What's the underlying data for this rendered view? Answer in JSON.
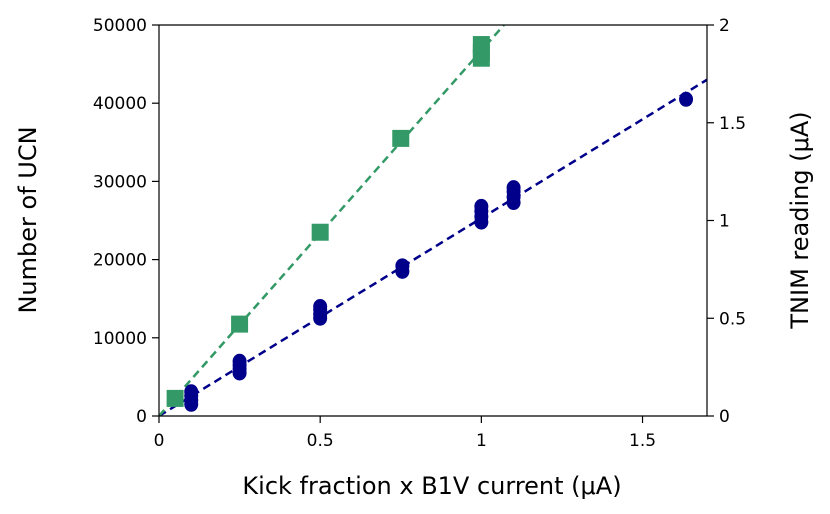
{
  "chart_data": {
    "type": "scatter",
    "title": "",
    "xlabel": "Kick fraction x B1V current (μA)",
    "ylabel_left": "Number of UCN",
    "ylabel_right": "TNIM reading (μA)",
    "xlim": [
      0,
      1.7
    ],
    "ylim_left": [
      0,
      50000
    ],
    "ylim_right": [
      0,
      2
    ],
    "x_ticks": [
      0,
      0.5,
      1,
      1.5
    ],
    "x_tick_labels": [
      "0",
      "0.5",
      "1",
      "1.5"
    ],
    "y_left_ticks": [
      0,
      10000,
      20000,
      30000,
      40000,
      50000
    ],
    "y_left_tick_labels": [
      "0",
      "10000",
      "20000",
      "30000",
      "40000",
      "50000"
    ],
    "y_right_ticks": [
      0,
      0.5,
      1,
      1.5,
      2
    ],
    "y_right_tick_labels": [
      "0",
      "0.5",
      "1",
      "1.5",
      "2"
    ],
    "grid": false,
    "series": [
      {
        "axis": "left",
        "marker": "circle",
        "color": "#00008b",
        "points": [
          [
            0.1,
            1500
          ],
          [
            0.1,
            2000
          ],
          [
            0.1,
            2600
          ],
          [
            0.1,
            3100
          ],
          [
            0.25,
            5500
          ],
          [
            0.25,
            6000
          ],
          [
            0.25,
            6500
          ],
          [
            0.25,
            7000
          ],
          [
            0.5,
            12500
          ],
          [
            0.5,
            13000
          ],
          [
            0.5,
            13600
          ],
          [
            0.5,
            14000
          ],
          [
            0.755,
            18500
          ],
          [
            0.755,
            19200
          ],
          [
            1.0,
            24800
          ],
          [
            1.0,
            25500
          ],
          [
            1.0,
            26200
          ],
          [
            1.0,
            26800
          ],
          [
            1.1,
            27300
          ],
          [
            1.1,
            28000
          ],
          [
            1.1,
            28700
          ],
          [
            1.1,
            29200
          ],
          [
            1.635,
            40500
          ]
        ],
        "fit": {
          "x": [
            0,
            1.7
          ],
          "y": [
            0,
            43000
          ]
        }
      },
      {
        "axis": "right",
        "marker": "square",
        "color": "#339966",
        "points": [
          [
            0.05,
            0.09
          ],
          [
            0.25,
            0.47
          ],
          [
            0.5,
            0.94
          ],
          [
            0.75,
            1.42
          ],
          [
            1.0,
            1.83
          ],
          [
            1.0,
            1.86
          ],
          [
            1.0,
            1.9
          ]
        ],
        "fit": {
          "x": [
            0,
            1.07
          ],
          "y": [
            0,
            2.0
          ]
        }
      }
    ]
  }
}
